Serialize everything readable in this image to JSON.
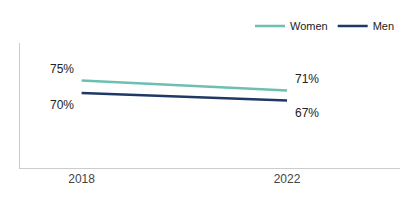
{
  "chart_data": {
    "type": "line",
    "x": [
      2018,
      2022
    ],
    "series": [
      {
        "name": "Women",
        "color": "#6dbfb0",
        "values": [
          75,
          71
        ]
      },
      {
        "name": "Men",
        "color": "#1f3864",
        "values": [
          70,
          67
        ]
      }
    ],
    "xlim": [
      2016.8,
      2024.2
    ],
    "xticks": [
      2018,
      2022
    ],
    "ylim": [
      40,
      90
    ],
    "tick_labels": "x",
    "grid": false,
    "legend": "upper right",
    "annotations": [
      {
        "text": "75%",
        "x": 2018,
        "y": 75
      },
      {
        "text": "71%",
        "x": 2022,
        "y": 71
      },
      {
        "text": "70%",
        "x": 2018,
        "y": 70
      },
      {
        "text": "67%",
        "x": 2022,
        "y": 67
      }
    ]
  }
}
